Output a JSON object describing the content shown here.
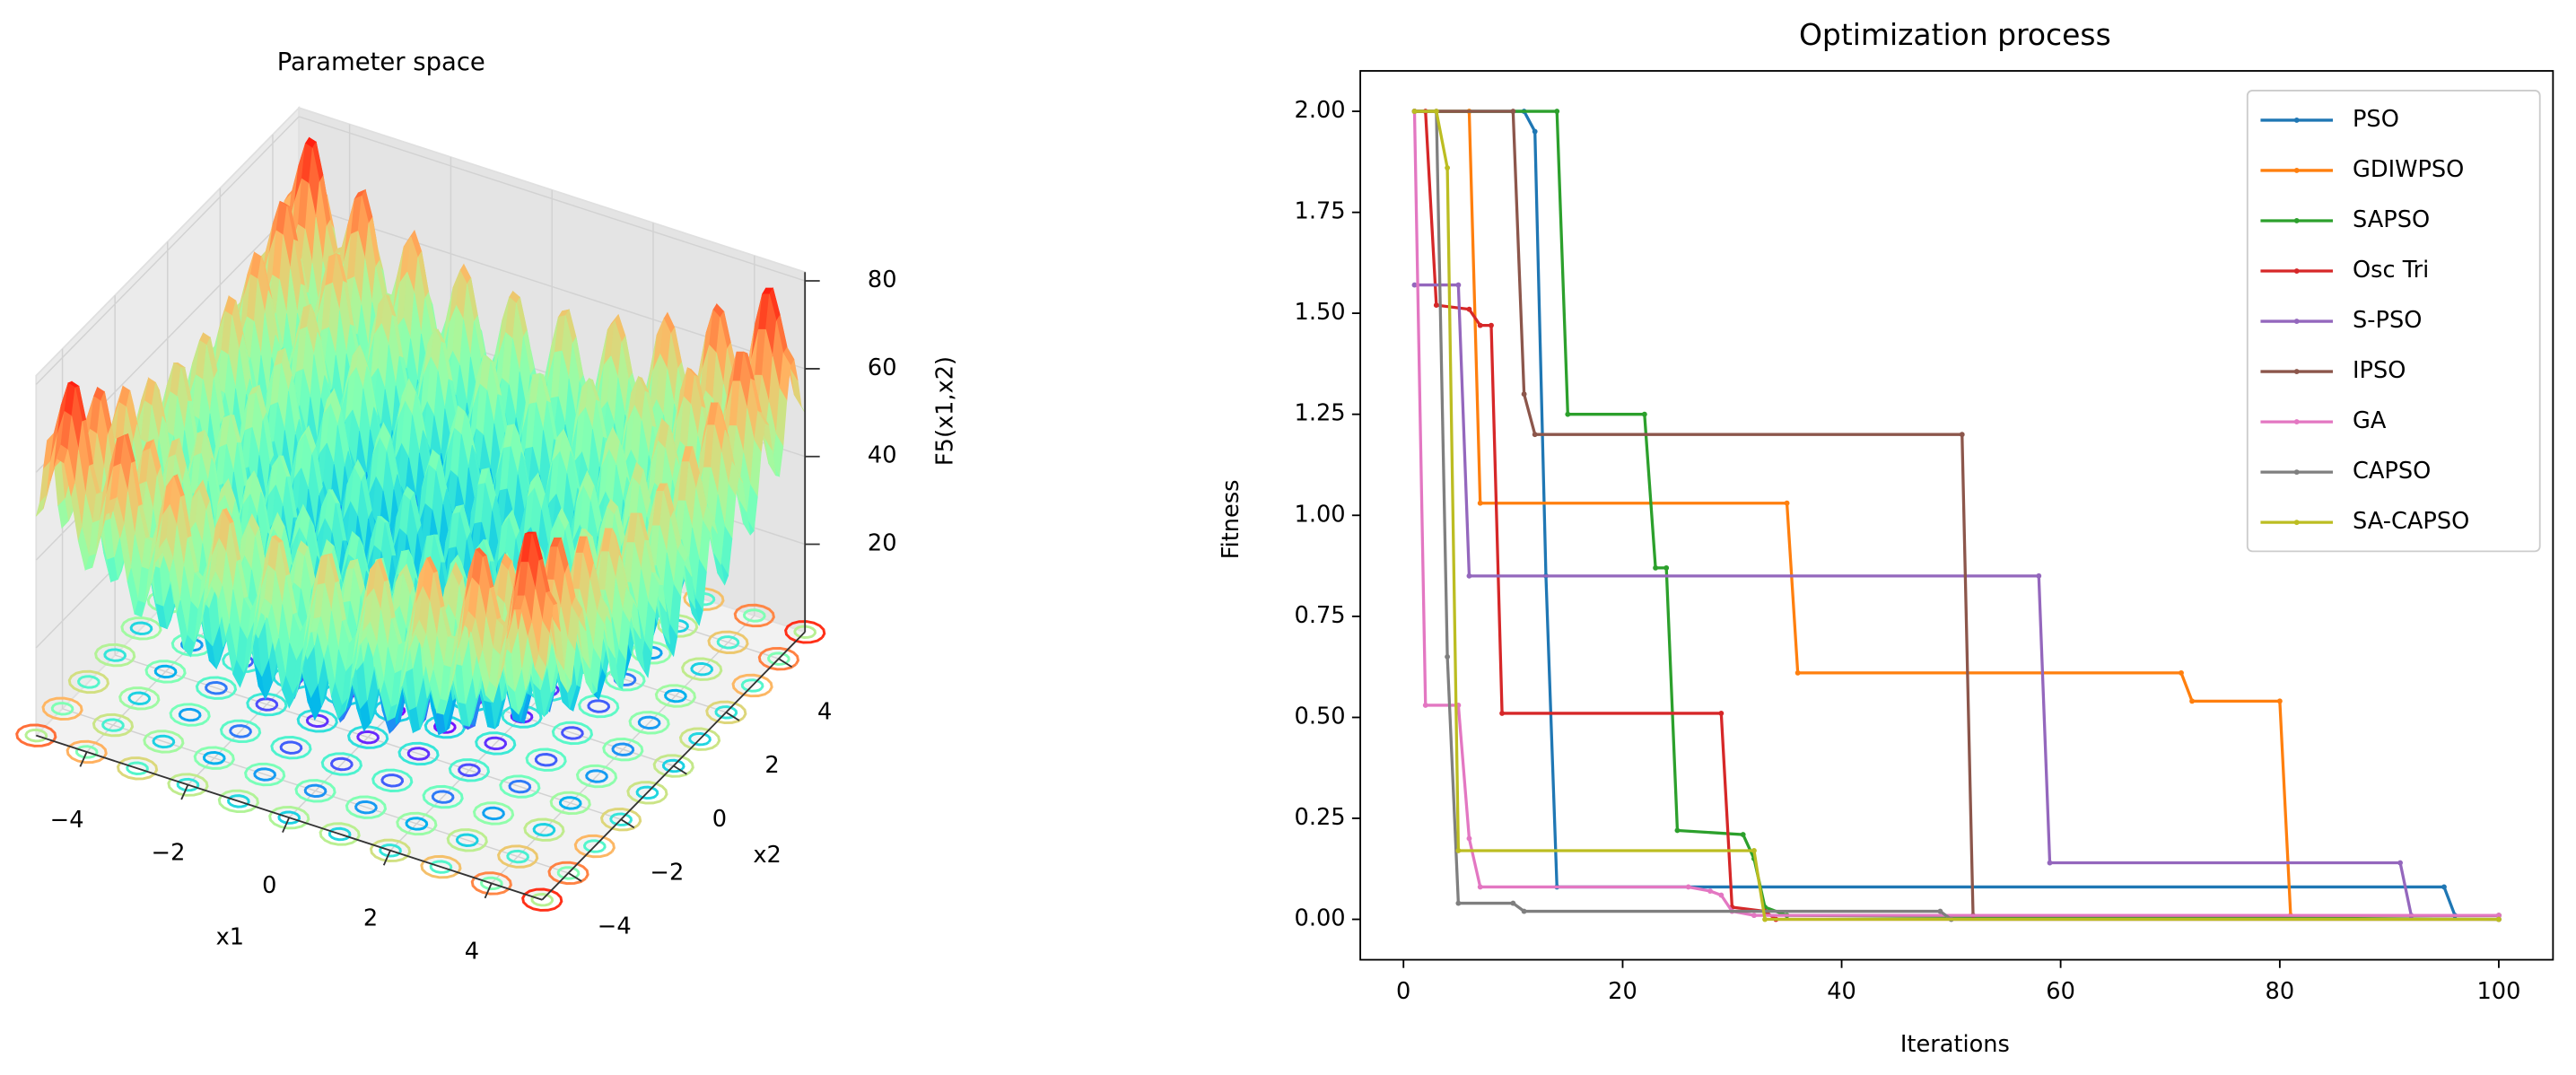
{
  "chart_data": [
    {
      "type": "surface3d",
      "title": "Parameter space",
      "xlabel": "x1",
      "ylabel": "x2",
      "zlabel": "F5(x1,x2)",
      "xlim": [
        -5,
        5
      ],
      "ylim": [
        -5,
        5
      ],
      "zlim": [
        0,
        82
      ],
      "colormap": "rainbow",
      "xticks": [
        {
          "value": -4,
          "label": "−4"
        },
        {
          "value": -2,
          "label": "−2"
        },
        0,
        2,
        4
      ],
      "yticks": [
        {
          "value": -4,
          "label": "−4"
        },
        {
          "value": -2,
          "label": "−2"
        },
        0,
        2,
        4
      ],
      "zticks": [
        20,
        40,
        60,
        80
      ]
    },
    {
      "type": "line",
      "title": "Optimization process",
      "xlabel": "Iterations",
      "ylabel": "Fitness",
      "xlim": [
        -3.95,
        104.95
      ],
      "ylim": [
        -0.1,
        2.1
      ],
      "xticks": [
        0,
        20,
        40,
        60,
        80,
        100
      ],
      "yticks": [
        {
          "value": 0,
          "label": "0.00"
        },
        {
          "value": 0.25,
          "label": "0.25"
        },
        {
          "value": 0.5,
          "label": "0.50"
        },
        {
          "value": 0.75,
          "label": "0.75"
        },
        {
          "value": 1,
          "label": "1.00"
        },
        {
          "value": 1.25,
          "label": "1.25"
        },
        {
          "value": 1.5,
          "label": "1.50"
        },
        {
          "value": 1.75,
          "label": "1.75"
        },
        {
          "value": 2,
          "label": "2.00"
        }
      ],
      "legend": "upper right",
      "series": [
        {
          "name": "PSO",
          "color": "#1f77b4",
          "x": [
            1,
            11,
            12,
            13,
            14,
            95,
            96,
            100
          ],
          "values": [
            2,
            2,
            1.95,
            0.85,
            0.08,
            0.08,
            0.01,
            0.01
          ]
        },
        {
          "name": "GDIWPSO",
          "color": "#ff7f0e",
          "x": [
            1,
            6,
            7,
            35,
            36,
            71,
            72,
            80,
            81,
            100
          ],
          "values": [
            2,
            2,
            1.03,
            1.03,
            0.61,
            0.61,
            0.54,
            0.54,
            0.01,
            0.01
          ]
        },
        {
          "name": "SAPSO",
          "color": "#2ca02c",
          "x": [
            1,
            14,
            15,
            22,
            23,
            24,
            25,
            31,
            32,
            33,
            35,
            100
          ],
          "values": [
            2,
            2,
            1.25,
            1.25,
            0.87,
            0.87,
            0.22,
            0.21,
            0.15,
            0.03,
            0.01,
            0
          ]
        },
        {
          "name": "Osc Tri",
          "color": "#d62728",
          "x": [
            1,
            2,
            3,
            6,
            7,
            8,
            9,
            29,
            30,
            33,
            34,
            100
          ],
          "values": [
            2,
            2,
            1.52,
            1.51,
            1.47,
            1.47,
            0.51,
            0.51,
            0.03,
            0.02,
            0,
            0
          ]
        },
        {
          "name": "S-PSO",
          "color": "#9467bd",
          "x": [
            1,
            5,
            6,
            58,
            59,
            91,
            92,
            100
          ],
          "values": [
            1.57,
            1.57,
            0.85,
            0.85,
            0.14,
            0.14,
            0.01,
            0.01
          ]
        },
        {
          "name": "IPSO",
          "color": "#8c564b",
          "x": [
            1,
            10,
            11,
            12,
            51,
            52,
            100
          ],
          "values": [
            2,
            2,
            1.3,
            1.2,
            1.2,
            0.01,
            0.01
          ]
        },
        {
          "name": "GA",
          "color": "#e377c2",
          "x": [
            1,
            2,
            5,
            6,
            7,
            26,
            28,
            29,
            30,
            32,
            100
          ],
          "values": [
            2,
            0.53,
            0.53,
            0.2,
            0.08,
            0.08,
            0.07,
            0.06,
            0.02,
            0.01,
            0.01
          ]
        },
        {
          "name": "CAPSO",
          "color": "#7f7f7f",
          "x": [
            1,
            3,
            4,
            5,
            10,
            11,
            49,
            50,
            100
          ],
          "values": [
            2,
            2,
            0.65,
            0.04,
            0.04,
            0.02,
            0.02,
            0,
            0
          ]
        },
        {
          "name": "SA-CAPSO",
          "color": "#bcbd22",
          "x": [
            1,
            3,
            4,
            5,
            32,
            33,
            100
          ],
          "values": [
            2,
            2,
            1.86,
            0.17,
            0.17,
            0,
            0
          ]
        }
      ]
    }
  ]
}
